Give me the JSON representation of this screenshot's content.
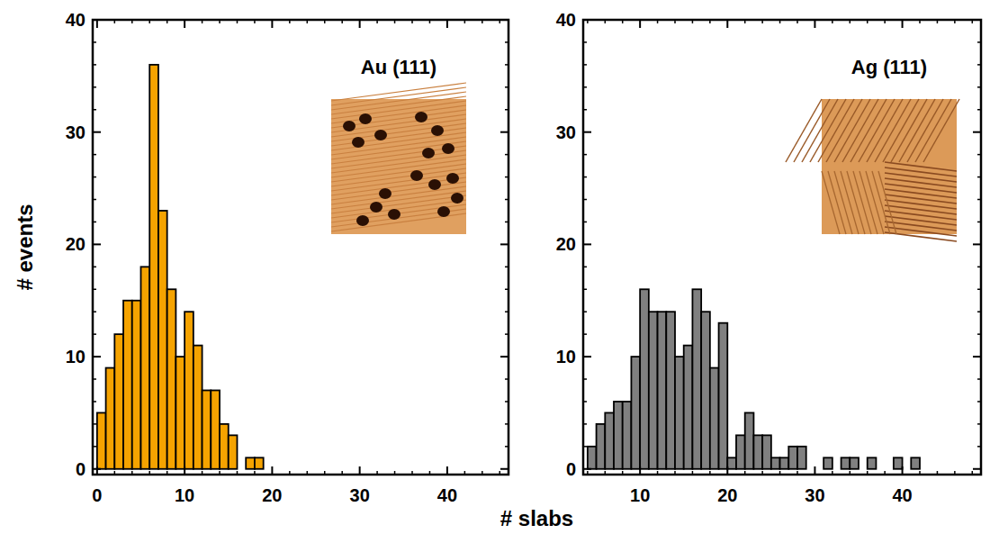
{
  "xlabel": "# slabs",
  "ylabel": "# events",
  "chart_data": [
    {
      "type": "histogram",
      "title": "Au (111)",
      "color": "#f5a300",
      "bins": [
        0,
        1,
        2,
        3,
        4,
        5,
        6,
        7,
        8,
        9,
        10,
        11,
        12,
        13,
        14,
        15,
        16,
        17,
        18,
        19
      ],
      "values": [
        5,
        9,
        12,
        15,
        15,
        18,
        36,
        23,
        16,
        10,
        14,
        11,
        7,
        7,
        4,
        3,
        0,
        1,
        1
      ],
      "xlim": [
        -0.5,
        47
      ],
      "xticks": [
        0,
        10,
        20,
        30,
        40
      ],
      "ylim": [
        -0.5,
        40
      ],
      "yticks": [
        0,
        10,
        20,
        30,
        40
      ]
    },
    {
      "type": "histogram",
      "title": "Ag (111)",
      "color": "#808080",
      "bins": [
        4,
        5,
        6,
        7,
        8,
        9,
        10,
        11,
        12,
        13,
        14,
        15,
        16,
        17,
        18,
        19,
        20,
        21,
        22,
        23,
        24,
        25,
        26,
        27,
        28,
        29,
        30,
        31,
        32,
        33,
        34,
        35,
        36,
        37,
        38,
        39,
        40,
        41,
        42
      ],
      "values": [
        2,
        4,
        5,
        6,
        6,
        10,
        16,
        14,
        14,
        14,
        10,
        11,
        16,
        14,
        9,
        13,
        1,
        3,
        5,
        3,
        3,
        1,
        1,
        2,
        2,
        0,
        0,
        1,
        0,
        1,
        1,
        0,
        1,
        0,
        0,
        1,
        0,
        1
      ],
      "xlim": [
        3.5,
        49
      ],
      "xticks": [
        10,
        20,
        30,
        40
      ],
      "ylim": [
        -0.5,
        40
      ],
      "yticks": [
        0,
        10,
        20,
        30,
        40
      ]
    }
  ]
}
